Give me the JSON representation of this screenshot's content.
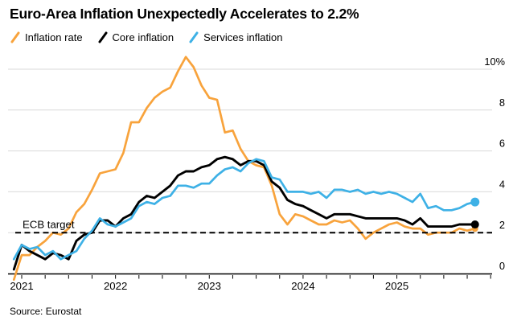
{
  "title": "Euro-Area Inflation Unexpectedly Accelerates to 2.2%",
  "source": "Source: Eurostat",
  "ecb_target": {
    "label": "ECB target",
    "value": 2
  },
  "colors": {
    "orange": "#F8A33C",
    "black": "#000000",
    "blue": "#3EB1E6",
    "grid": "#D9D9D9",
    "axis": "#000000",
    "background": "#FFFFFF"
  },
  "legend": [
    {
      "label": "Inflation rate",
      "color": "#F8A33C"
    },
    {
      "label": "Core inflation",
      "color": "#000000"
    },
    {
      "label": "Services inflation",
      "color": "#3EB1E6"
    }
  ],
  "chart_data": {
    "type": "line",
    "frequency": "monthly",
    "x_start": "2020-12",
    "x_end": "2025-11",
    "grid": true,
    "legend_position": "top",
    "ylim": [
      -0.5,
      10.8
    ],
    "y_axis": {
      "side": "right",
      "ticks": [
        {
          "label": "10%",
          "value": 10
        },
        {
          "label": "8",
          "value": 8
        },
        {
          "label": "6",
          "value": 6
        },
        {
          "label": "4",
          "value": 4
        },
        {
          "label": "2",
          "value": 2
        },
        {
          "label": "0",
          "value": 0
        }
      ]
    },
    "x_axis": {
      "year_labels": [
        "2021",
        "2022",
        "2023",
        "2024",
        "2025"
      ],
      "minor_ticks": "quarterly"
    },
    "annotations": [
      {
        "type": "dashed-hline",
        "label": "ECB target",
        "value": 2
      }
    ],
    "series": [
      {
        "name": "Inflation rate",
        "color": "#F8A33C",
        "end_dot": true,
        "end_value": 2.2,
        "values": [
          -0.3,
          0.9,
          0.9,
          1.3,
          1.6,
          2.0,
          1.9,
          2.2,
          3.0,
          3.4,
          4.1,
          4.9,
          5.0,
          5.1,
          5.9,
          7.4,
          7.4,
          8.1,
          8.6,
          8.9,
          9.1,
          9.9,
          10.6,
          10.1,
          9.2,
          8.6,
          8.5,
          6.9,
          7.0,
          6.1,
          5.5,
          5.3,
          5.2,
          4.3,
          2.9,
          2.4,
          2.9,
          2.8,
          2.6,
          2.4,
          2.4,
          2.6,
          2.5,
          2.6,
          2.2,
          1.7,
          2.0,
          2.2,
          2.4,
          2.5,
          2.3,
          2.2,
          2.2,
          1.9,
          2.0,
          2.0,
          2.0,
          2.2,
          2.1,
          2.2
        ]
      },
      {
        "name": "Core inflation",
        "color": "#000000",
        "end_dot": true,
        "end_value": 2.4,
        "values": [
          0.2,
          1.4,
          1.1,
          0.9,
          0.7,
          1.0,
          0.9,
          0.7,
          1.6,
          1.9,
          2.0,
          2.6,
          2.6,
          2.3,
          2.7,
          2.9,
          3.5,
          3.8,
          3.7,
          4.0,
          4.3,
          4.8,
          5.0,
          5.0,
          5.2,
          5.3,
          5.6,
          5.7,
          5.6,
          5.3,
          5.5,
          5.5,
          5.3,
          4.5,
          4.2,
          3.6,
          3.4,
          3.3,
          3.1,
          2.9,
          2.7,
          2.9,
          2.9,
          2.9,
          2.8,
          2.7,
          2.7,
          2.7,
          2.7,
          2.7,
          2.6,
          2.4,
          2.7,
          2.3,
          2.3,
          2.3,
          2.3,
          2.4,
          2.4,
          2.4
        ]
      },
      {
        "name": "Services inflation",
        "color": "#3EB1E6",
        "end_dot": true,
        "end_value": 3.5,
        "values": [
          0.7,
          1.4,
          1.2,
          1.3,
          0.9,
          1.1,
          0.7,
          0.9,
          1.1,
          1.7,
          2.1,
          2.7,
          2.4,
          2.3,
          2.5,
          2.7,
          3.3,
          3.5,
          3.4,
          3.7,
          3.8,
          4.3,
          4.3,
          4.2,
          4.4,
          4.4,
          4.8,
          5.1,
          5.2,
          5.0,
          5.4,
          5.6,
          5.5,
          4.7,
          4.6,
          4.0,
          4.0,
          4.0,
          3.9,
          4.0,
          3.7,
          4.1,
          4.1,
          4.0,
          4.1,
          3.9,
          4.0,
          3.9,
          4.0,
          3.9,
          3.7,
          3.5,
          3.9,
          3.2,
          3.3,
          3.1,
          3.1,
          3.2,
          3.4,
          3.5
        ]
      }
    ]
  }
}
